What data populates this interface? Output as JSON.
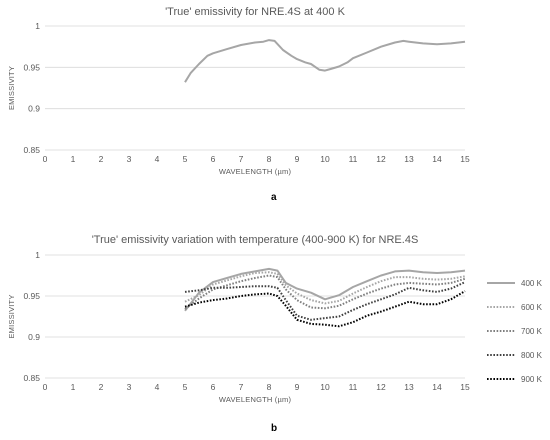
{
  "panel_labels": [
    "a",
    "b"
  ],
  "chart_data": [
    {
      "type": "line",
      "title": "'True' emissivity for NRE.4S at 400 K",
      "xlabel": "WAVELENGTH (µm)",
      "ylabel": "EMISSIVITY",
      "xlim": [
        0,
        15
      ],
      "ylim": [
        0.85,
        1
      ],
      "xticks": [
        "0",
        "1",
        "2",
        "3",
        "4",
        "5",
        "6",
        "7",
        "8",
        "9",
        "10",
        "11",
        "12",
        "13",
        "14",
        "15"
      ],
      "yticks": [
        "0.85",
        "0.9",
        "0.95",
        "1"
      ],
      "grid": true,
      "legend": "none",
      "series": [
        {
          "color": "#a6a6a6",
          "style": "solid",
          "x": [
            5.0,
            5.2,
            5.5,
            5.8,
            6.0,
            6.5,
            7.0,
            7.5,
            7.8,
            8.0,
            8.2,
            8.5,
            8.8,
            9.0,
            9.3,
            9.5,
            9.8,
            10.0,
            10.2,
            10.5,
            10.8,
            11.0,
            11.5,
            12.0,
            12.5,
            12.8,
            13.0,
            13.5,
            14.0,
            14.5,
            15.0
          ],
          "y": [
            0.932,
            0.943,
            0.954,
            0.964,
            0.967,
            0.972,
            0.977,
            0.98,
            0.981,
            0.983,
            0.982,
            0.971,
            0.964,
            0.96,
            0.956,
            0.954,
            0.947,
            0.946,
            0.948,
            0.951,
            0.956,
            0.961,
            0.968,
            0.975,
            0.98,
            0.982,
            0.981,
            0.979,
            0.978,
            0.979,
            0.981
          ]
        }
      ]
    },
    {
      "type": "line",
      "title": "'True' emissivity variation with temperature (400-900  K) for NRE.4S",
      "xlabel": "WAVELENGTH (µm)",
      "ylabel": "EMISSIVITY",
      "xlim": [
        0,
        15
      ],
      "ylim": [
        0.85,
        1
      ],
      "xticks": [
        "0",
        "1",
        "2",
        "3",
        "4",
        "5",
        "6",
        "7",
        "8",
        "9",
        "10",
        "11",
        "12",
        "13",
        "14",
        "15"
      ],
      "yticks": [
        "0.85",
        "0.9",
        "0.95",
        "1"
      ],
      "grid": true,
      "legend": "right",
      "series": [
        {
          "name": "400 K",
          "color": "#a6a6a6",
          "style": "solid",
          "x": [
            5.0,
            5.5,
            6.0,
            6.5,
            7.0,
            7.5,
            8.0,
            8.3,
            8.6,
            9.0,
            9.5,
            10.0,
            10.5,
            11.0,
            11.5,
            12.0,
            12.5,
            13.0,
            13.5,
            14.0,
            14.5,
            15.0
          ],
          "y": [
            0.932,
            0.954,
            0.967,
            0.972,
            0.977,
            0.98,
            0.983,
            0.981,
            0.966,
            0.959,
            0.954,
            0.946,
            0.951,
            0.961,
            0.968,
            0.975,
            0.98,
            0.981,
            0.979,
            0.978,
            0.979,
            0.981
          ]
        },
        {
          "name": "600 K",
          "color": "#a6a6a6",
          "style": "dotted",
          "x": [
            5.0,
            5.5,
            6.0,
            6.5,
            7.0,
            7.5,
            8.0,
            8.3,
            8.6,
            9.0,
            9.5,
            10.0,
            10.5,
            11.0,
            11.5,
            12.0,
            12.5,
            13.0,
            13.5,
            14.0,
            14.5,
            15.0
          ],
          "y": [
            0.943,
            0.951,
            0.964,
            0.969,
            0.974,
            0.978,
            0.979,
            0.977,
            0.963,
            0.953,
            0.945,
            0.941,
            0.944,
            0.953,
            0.961,
            0.968,
            0.973,
            0.973,
            0.971,
            0.97,
            0.971,
            0.974
          ]
        },
        {
          "name": "700 K",
          "color": "#7f7f7f",
          "style": "dotted",
          "x": [
            5.0,
            5.5,
            6.0,
            6.5,
            7.0,
            7.5,
            8.0,
            8.3,
            8.6,
            9.0,
            9.5,
            10.0,
            10.5,
            11.0,
            11.5,
            12.0,
            12.5,
            13.0,
            13.5,
            14.0,
            14.5,
            15.0
          ],
          "y": [
            0.934,
            0.947,
            0.958,
            0.963,
            0.968,
            0.972,
            0.975,
            0.973,
            0.958,
            0.945,
            0.936,
            0.935,
            0.938,
            0.946,
            0.953,
            0.959,
            0.964,
            0.966,
            0.965,
            0.964,
            0.966,
            0.971
          ]
        },
        {
          "name": "800 K",
          "color": "#404040",
          "style": "dotted",
          "x": [
            5.0,
            5.5,
            6.0,
            6.5,
            7.0,
            7.5,
            8.0,
            8.3,
            8.6,
            9.0,
            9.5,
            10.0,
            10.5,
            11.0,
            11.5,
            12.0,
            12.5,
            13.0,
            13.5,
            14.0,
            14.5,
            15.0
          ],
          "y": [
            0.955,
            0.957,
            0.96,
            0.96,
            0.961,
            0.962,
            0.962,
            0.96,
            0.945,
            0.926,
            0.921,
            0.923,
            0.925,
            0.933,
            0.94,
            0.946,
            0.952,
            0.96,
            0.957,
            0.955,
            0.959,
            0.967
          ]
        },
        {
          "name": "900 K",
          "color": "#000000",
          "style": "dotted",
          "x": [
            5.0,
            5.5,
            6.0,
            6.5,
            7.0,
            7.5,
            8.0,
            8.3,
            8.6,
            9.0,
            9.5,
            10.0,
            10.5,
            11.0,
            11.5,
            12.0,
            12.5,
            13.0,
            13.5,
            14.0,
            14.5,
            15.0
          ],
          "y": [
            0.937,
            0.942,
            0.945,
            0.947,
            0.95,
            0.952,
            0.953,
            0.95,
            0.938,
            0.921,
            0.916,
            0.915,
            0.913,
            0.918,
            0.926,
            0.931,
            0.937,
            0.943,
            0.94,
            0.94,
            0.946,
            0.956
          ]
        }
      ]
    }
  ]
}
